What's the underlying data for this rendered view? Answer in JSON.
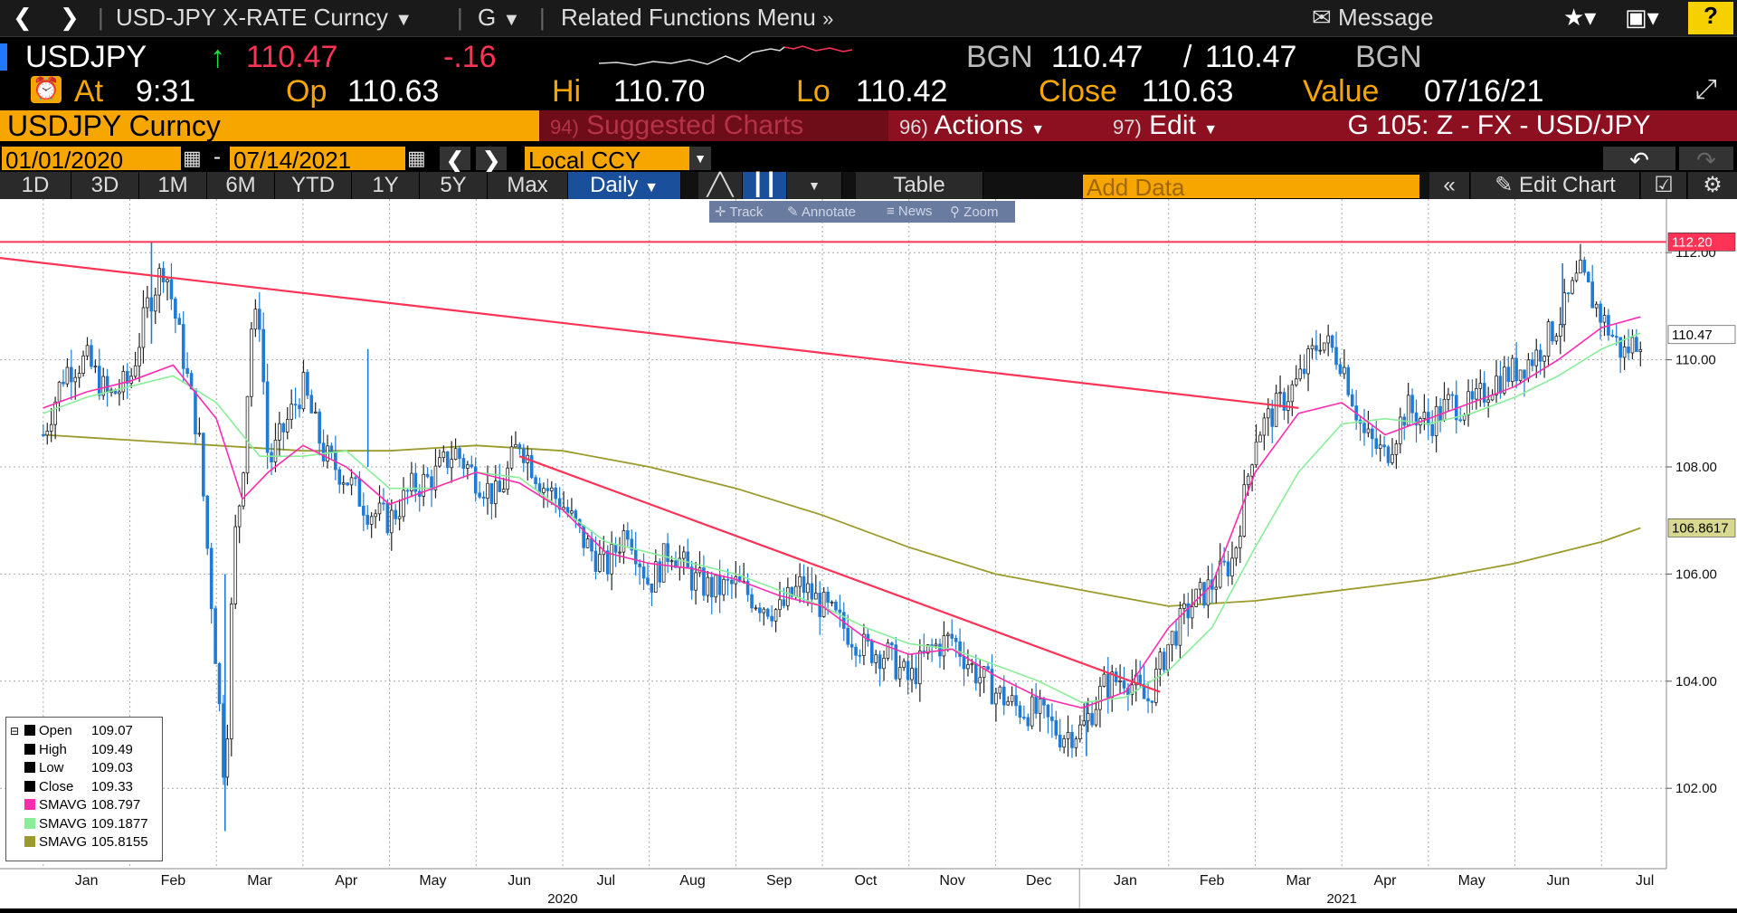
{
  "toolbar": {
    "back_icon": "chevron-left-icon",
    "forward_icon": "chevron-right-icon",
    "security_title": "USD-JPY X-RATE Curncy",
    "function_code": "G",
    "related_menu": "Related Functions Menu",
    "message_label": "Message",
    "help_label": "?"
  },
  "ticker": {
    "symbol": "USDJPY",
    "last": "110.47",
    "change": "-.16",
    "source": "BGN",
    "bid": "110.47",
    "ask": "110.47",
    "source2": "BGN",
    "at_label": "At",
    "time": "9:31",
    "op_label": "Op",
    "open": "110.63",
    "hi_label": "Hi",
    "high": "110.70",
    "lo_label": "Lo",
    "low": "110.42",
    "close_label": "Close",
    "close": "110.63",
    "value_label": "Value",
    "value_date": "07/16/21"
  },
  "menu_bar": {
    "security": "USDJPY Curncy",
    "suggested_num": "94)",
    "suggested": "Suggested Charts",
    "actions_num": "96)",
    "actions": "Actions",
    "edit_num": "97)",
    "edit": "Edit",
    "chart_id": "G 105: Z - FX - USD/JPY"
  },
  "date_bar": {
    "start_date": "01/01/2020",
    "separator": "-",
    "end_date": "07/14/2021",
    "currency": "Local CCY"
  },
  "timeframes": [
    "1D",
    "3D",
    "1M",
    "6M",
    "YTD",
    "1Y",
    "5Y",
    "Max"
  ],
  "periodicity": "Daily",
  "table_label": "Table",
  "add_data_placeholder": "Add Data",
  "edit_chart_label": "Edit Chart",
  "chart_tools": [
    "Track",
    "Annotate",
    "News",
    "Zoom"
  ],
  "chart_data": {
    "type": "line",
    "ylim": [
      100.5,
      113.0
    ],
    "y_ticks": [
      102.0,
      104.0,
      106.0,
      108.0,
      110.0,
      112.0
    ],
    "y_tick_labels": [
      "102.00",
      "104.00",
      "106.00",
      "108.00",
      "110.00",
      "112.00"
    ],
    "x_month_labels": [
      "Jan",
      "Feb",
      "Mar",
      "Apr",
      "May",
      "Jun",
      "Jul",
      "Aug",
      "Sep",
      "Oct",
      "Nov",
      "Dec",
      "Jan",
      "Feb",
      "Mar",
      "Apr",
      "May",
      "Jun",
      "Jul"
    ],
    "x_month_index": [
      0,
      1,
      2,
      3,
      4,
      5,
      6,
      7,
      8,
      9,
      10,
      11,
      12,
      13,
      14,
      15,
      16,
      17,
      18
    ],
    "x_year_labels": [
      "2020",
      "2021"
    ],
    "x_year_index": [
      5.5,
      14.5
    ],
    "x_range": [
      -0.5,
      18.75
    ],
    "price": {
      "name": "USDJPY",
      "t": [
        0,
        0.25,
        0.5,
        0.75,
        1.0,
        1.2,
        1.4,
        1.6,
        1.8,
        2.0,
        2.1,
        2.2,
        2.3,
        2.4,
        2.5,
        2.6,
        2.75,
        3.0,
        3.25,
        3.5,
        3.75,
        4.0,
        4.25,
        4.5,
        4.75,
        5.0,
        5.25,
        5.5,
        5.75,
        6.0,
        6.25,
        6.5,
        6.75,
        7.0,
        7.25,
        7.5,
        7.75,
        8.0,
        8.25,
        8.5,
        8.75,
        9.0,
        9.25,
        9.5,
        9.75,
        10.0,
        10.25,
        10.5,
        10.75,
        11.0,
        11.25,
        11.5,
        11.75,
        12.0,
        12.25,
        12.5,
        12.75,
        13.0,
        13.25,
        13.5,
        13.75,
        14.0,
        14.25,
        14.5,
        14.75,
        15.0,
        15.25,
        15.5,
        15.75,
        16.0,
        16.25,
        16.5,
        16.75,
        17.0,
        17.25,
        17.5,
        17.75,
        18.0,
        18.25,
        18.45
      ],
      "y": [
        108.6,
        109.8,
        110.0,
        109.3,
        109.6,
        111.0,
        111.8,
        110.2,
        108.5,
        104.3,
        102.0,
        106.5,
        107.8,
        110.6,
        110.8,
        108.0,
        108.6,
        109.5,
        108.2,
        107.8,
        107.2,
        107.0,
        107.6,
        107.8,
        108.3,
        107.8,
        107.4,
        108.5,
        107.7,
        107.3,
        106.6,
        106.1,
        106.9,
        105.8,
        106.5,
        105.9,
        105.7,
        105.8,
        105.5,
        105.3,
        105.8,
        105.4,
        105.0,
        104.6,
        104.5,
        104.0,
        104.6,
        104.8,
        104.2,
        103.8,
        103.5,
        103.4,
        103.0,
        103.1,
        103.9,
        104.1,
        103.6,
        104.7,
        105.4,
        105.8,
        106.3,
        108.6,
        109.1,
        109.6,
        110.4,
        110.0,
        108.6,
        108.2,
        109.1,
        108.8,
        109.2,
        109.1,
        109.6,
        109.8,
        110.1,
        110.7,
        111.6,
        110.8,
        110.1,
        110.47
      ]
    },
    "sma_short": {
      "name": "SMAVG",
      "value": "108.797",
      "color": "#ff2bb0",
      "t": [
        0,
        0.5,
        1.0,
        1.5,
        2.0,
        2.3,
        2.6,
        3.0,
        3.5,
        4.0,
        4.5,
        5.0,
        5.5,
        6.0,
        6.5,
        7.0,
        7.5,
        8.0,
        8.5,
        9.0,
        9.5,
        10.0,
        10.5,
        11.0,
        11.5,
        12.0,
        12.5,
        13.0,
        13.5,
        14.0,
        14.5,
        15.0,
        15.5,
        16.0,
        16.5,
        17.0,
        17.5,
        18.0,
        18.45
      ],
      "y": [
        109.1,
        109.4,
        109.6,
        109.9,
        108.9,
        107.4,
        107.9,
        108.4,
        108.0,
        107.3,
        107.6,
        107.9,
        107.7,
        107.2,
        106.4,
        106.2,
        106.1,
        105.9,
        105.6,
        105.4,
        104.8,
        104.5,
        104.6,
        104.1,
        103.7,
        103.5,
        103.8,
        105.0,
        105.8,
        107.9,
        109.0,
        109.2,
        108.6,
        108.9,
        109.2,
        109.5,
        110.0,
        110.6,
        110.8
      ]
    },
    "sma_mid": {
      "name": "SMAVG",
      "value": "109.1877",
      "color": "#88ee99",
      "t": [
        0,
        0.5,
        1.0,
        1.5,
        2.0,
        2.5,
        3.0,
        3.5,
        4.0,
        4.5,
        5.0,
        5.5,
        6.0,
        6.5,
        7.0,
        7.5,
        8.0,
        8.5,
        9.0,
        9.5,
        10.0,
        10.5,
        11.0,
        11.5,
        12.0,
        12.5,
        13.0,
        13.5,
        14.0,
        14.5,
        15.0,
        15.5,
        16.0,
        16.5,
        17.0,
        17.5,
        18.0,
        18.45
      ],
      "y": [
        109.0,
        109.3,
        109.5,
        109.7,
        109.2,
        108.2,
        108.2,
        108.3,
        107.6,
        107.6,
        107.9,
        107.8,
        107.2,
        106.6,
        106.4,
        106.2,
        106.0,
        105.7,
        105.4,
        105.0,
        104.7,
        104.6,
        104.3,
        104.0,
        103.6,
        103.7,
        104.2,
        105.0,
        106.5,
        107.9,
        108.8,
        108.9,
        108.8,
        109.0,
        109.3,
        109.7,
        110.2,
        110.5
      ]
    },
    "sma_long": {
      "name": "SMAVG",
      "value": "105.8155",
      "color": "#9b9b2c",
      "last_label": "106.8617",
      "t": [
        0,
        1,
        2,
        3,
        4,
        5,
        6,
        7,
        8,
        9,
        10,
        11,
        12,
        13,
        14,
        15,
        16,
        17,
        18,
        18.45
      ],
      "y": [
        108.6,
        108.5,
        108.4,
        108.3,
        108.3,
        108.4,
        108.3,
        108.0,
        107.6,
        107.1,
        106.5,
        106.0,
        105.7,
        105.4,
        105.5,
        105.7,
        105.9,
        106.2,
        106.6,
        106.86
      ]
    },
    "resistance_line": {
      "y": 112.2,
      "label": "112.20",
      "color": "#ff3355"
    },
    "trendline_1": {
      "t": [
        -0.5,
        14.5
      ],
      "y": [
        111.9,
        109.1
      ],
      "color": "#ff3355"
    },
    "trendline_2": {
      "t": [
        5.5,
        12.9
      ],
      "y": [
        108.2,
        103.8
      ],
      "color": "#ff3355"
    },
    "last_price_label": "110.47",
    "legend": {
      "entries": [
        {
          "name": "Open",
          "value": "109.07",
          "color": "#000000"
        },
        {
          "name": "High",
          "value": "109.49",
          "color": "#000000"
        },
        {
          "name": "Low",
          "value": "109.03",
          "color": "#000000"
        },
        {
          "name": "Close",
          "value": "109.33",
          "color": "#000000"
        },
        {
          "name": "SMAVG",
          "value": "108.797",
          "color": "#ff2bb0"
        },
        {
          "name": "SMAVG",
          "value": "109.1877",
          "color": "#88ee99"
        },
        {
          "name": "SMAVG",
          "value": "105.8155",
          "color": "#9b9b2c"
        }
      ],
      "placement": "bottom-left"
    },
    "grid": true
  }
}
